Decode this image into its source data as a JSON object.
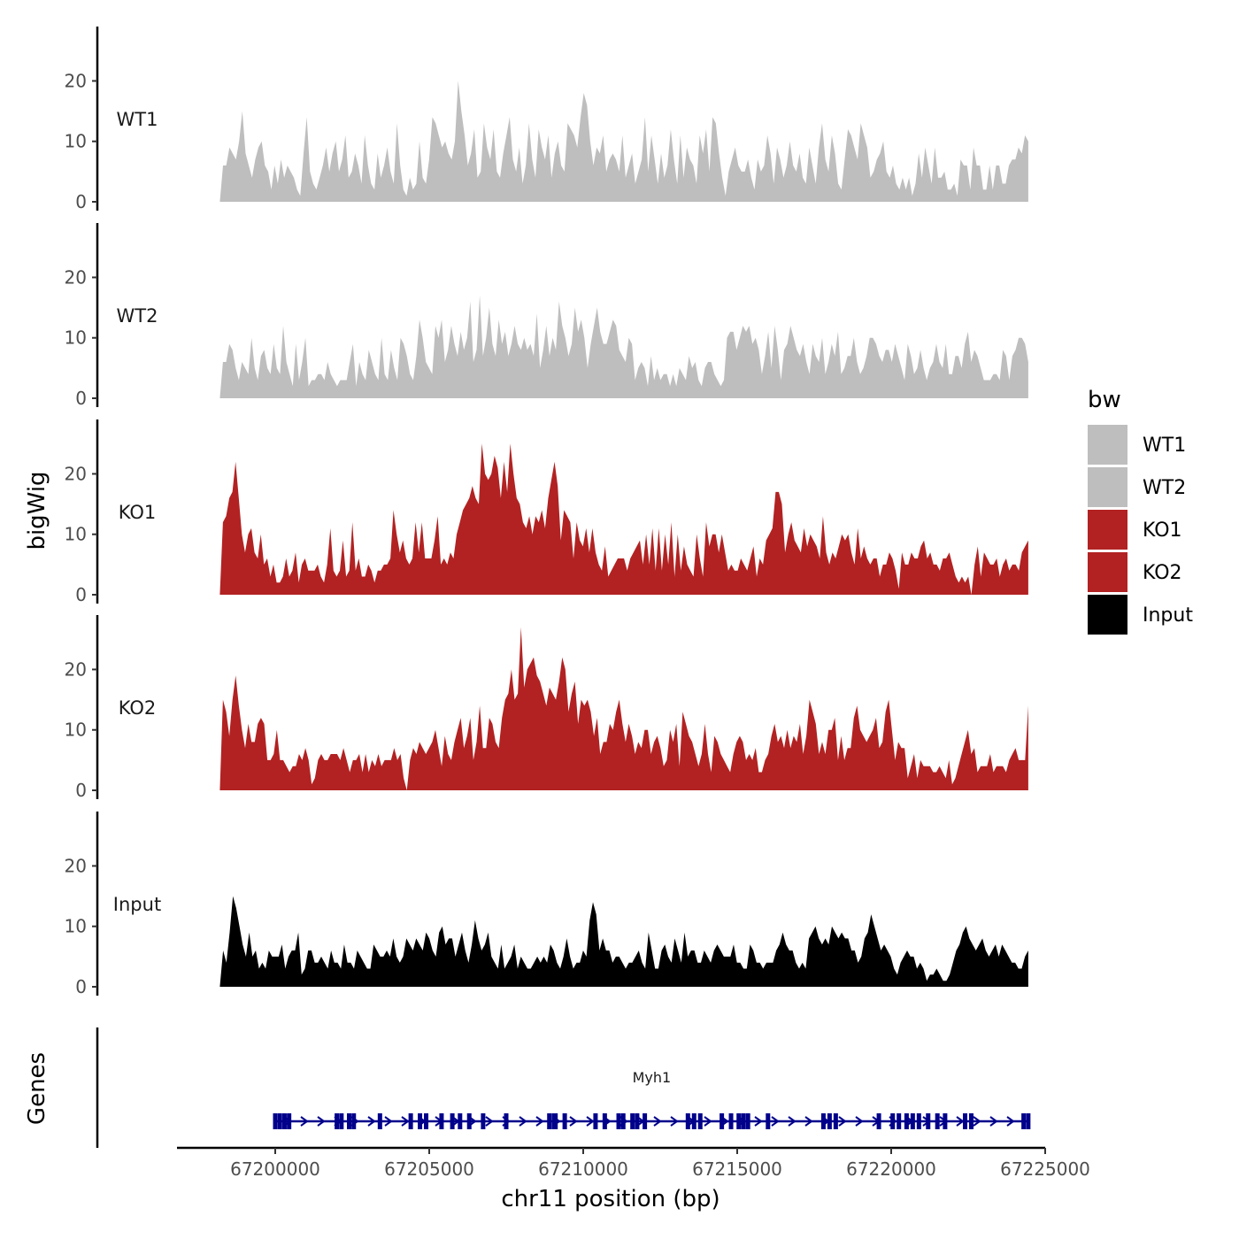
{
  "chart_data": {
    "type": "area",
    "ylabel": "bigWig",
    "xlabel": "chr11 position (bp)",
    "xlim": [
      67198200,
      67224450
    ],
    "ylim": [
      0,
      29
    ],
    "y_ticks": [
      0,
      10,
      20
    ],
    "x_ticks": [
      67200000,
      67205000,
      67210000,
      67215000,
      67220000,
      67225000
    ],
    "x_tick_labels": [
      "67200000",
      "67205000",
      "67210000",
      "67215000",
      "67220000",
      "67225000"
    ],
    "legend": {
      "title": "bw",
      "placement": "right",
      "entries": [
        {
          "label": "WT1",
          "color": "#bebebe"
        },
        {
          "label": "WT2",
          "color": "#bebebe"
        },
        {
          "label": "KO1",
          "color": "#b22222"
        },
        {
          "label": "KO2",
          "color": "#b22222"
        },
        {
          "label": "Input",
          "color": "#000000"
        }
      ]
    },
    "series": [
      {
        "name": "WT1",
        "color": "#bebebe",
        "values": [
          0,
          6,
          6,
          9,
          8,
          7,
          10,
          15,
          8,
          6,
          4,
          7,
          9,
          10,
          6,
          5,
          2,
          6,
          3,
          7,
          4,
          6,
          5,
          4,
          2,
          1,
          8,
          14,
          5,
          3,
          2,
          4,
          6,
          9,
          5,
          8,
          10,
          5,
          7,
          11,
          4,
          5,
          8,
          6,
          3,
          11,
          6,
          3,
          2,
          8,
          4,
          6,
          9,
          5,
          3,
          13,
          6,
          2,
          1,
          4,
          2,
          3,
          10,
          4,
          3,
          7,
          14,
          13,
          11,
          9,
          10,
          8,
          7,
          10,
          20,
          15,
          11,
          6,
          8,
          12,
          4,
          5,
          13,
          9,
          7,
          12,
          5,
          4,
          8,
          11,
          14,
          7,
          5,
          9,
          3,
          6,
          13,
          7,
          4,
          12,
          9,
          7,
          11,
          4,
          8,
          10,
          6,
          5,
          13,
          12,
          11,
          9,
          14,
          18,
          16,
          10,
          6,
          9,
          8,
          11,
          5,
          7,
          8,
          7,
          5,
          11,
          4,
          6,
          8,
          3,
          5,
          7,
          14,
          5,
          11,
          7,
          3,
          8,
          4,
          6,
          12,
          7,
          3,
          11,
          4,
          9,
          7,
          6,
          3,
          11,
          8,
          12,
          5,
          14,
          13,
          8,
          4,
          1,
          5,
          7,
          9,
          6,
          5,
          5,
          7,
          4,
          2,
          7,
          5,
          6,
          11,
          8,
          3,
          9,
          7,
          4,
          6,
          10,
          6,
          5,
          8,
          4,
          3,
          9,
          6,
          3,
          9,
          13,
          7,
          5,
          11,
          8,
          3,
          2,
          7,
          12,
          11,
          9,
          7,
          13,
          11,
          9,
          4,
          5,
          7,
          8,
          10,
          5,
          4,
          6,
          3,
          2,
          4,
          2,
          4,
          1,
          3,
          8,
          4,
          9,
          6,
          3,
          9,
          4,
          4,
          5,
          2,
          2,
          3,
          1,
          7,
          6,
          6,
          2,
          9,
          6,
          6,
          2,
          2,
          6,
          2,
          6,
          6,
          3,
          3,
          6,
          7,
          7,
          9,
          8,
          11,
          10
        ]
      },
      {
        "name": "WT2",
        "color": "#bebebe",
        "values": [
          0,
          6,
          6,
          9,
          8,
          5,
          3,
          6,
          5,
          4,
          10,
          5,
          3,
          7,
          8,
          5,
          4,
          9,
          5,
          4,
          12,
          6,
          4,
          2,
          9,
          3,
          6,
          10,
          2,
          3,
          3,
          4,
          4,
          3,
          6,
          4,
          3,
          2,
          3,
          3,
          3,
          6,
          9,
          2,
          6,
          4,
          3,
          8,
          6,
          4,
          3,
          10,
          4,
          3,
          8,
          5,
          3,
          10,
          9,
          7,
          4,
          3,
          7,
          13,
          10,
          6,
          5,
          4,
          12,
          10,
          13,
          6,
          8,
          12,
          9,
          7,
          11,
          8,
          10,
          16,
          6,
          8,
          17,
          7,
          10,
          15,
          9,
          7,
          13,
          9,
          11,
          7,
          9,
          12,
          9,
          8,
          10,
          8,
          9,
          7,
          14,
          5,
          8,
          12,
          7,
          10,
          8,
          16,
          12,
          10,
          7,
          9,
          15,
          11,
          13,
          10,
          5,
          9,
          12,
          15,
          11,
          9,
          9,
          11,
          13,
          12,
          8,
          7,
          6,
          10,
          9,
          3,
          5,
          6,
          5,
          2,
          7,
          3,
          5,
          3,
          4,
          4,
          2,
          4,
          2,
          5,
          4,
          3,
          7,
          5,
          6,
          3,
          2,
          5,
          6,
          6,
          4,
          3,
          2,
          3,
          10,
          11,
          11,
          8,
          10,
          12,
          11,
          12,
          9,
          10,
          8,
          4,
          7,
          11,
          5,
          12,
          8,
          3,
          8,
          9,
          12,
          10,
          8,
          7,
          9,
          6,
          4,
          9,
          7,
          6,
          10,
          4,
          6,
          9,
          7,
          11,
          4,
          5,
          7,
          7,
          10,
          6,
          4,
          5,
          7,
          10,
          10,
          9,
          7,
          6,
          8,
          8,
          6,
          9,
          7,
          5,
          3,
          9,
          7,
          4,
          5,
          8,
          5,
          3,
          5,
          6,
          9,
          6,
          5,
          9,
          4,
          4,
          7,
          7,
          5,
          9,
          11,
          6,
          8,
          7,
          5,
          3,
          3,
          3,
          4,
          4,
          3,
          8,
          7,
          3,
          7,
          8,
          10,
          10,
          9,
          6
        ]
      },
      {
        "name": "KO1",
        "color": "#b22222",
        "values": [
          0,
          12,
          13,
          16,
          17,
          22,
          16,
          10,
          7,
          10,
          11,
          7,
          6,
          10,
          5,
          6,
          3,
          5,
          2,
          2,
          3,
          6,
          3,
          4,
          7,
          2,
          5,
          6,
          4,
          4,
          4,
          5,
          3,
          2,
          5,
          11,
          4,
          3,
          4,
          9,
          3,
          4,
          12,
          4,
          6,
          3,
          3,
          5,
          4,
          2,
          4,
          4,
          5,
          5,
          6,
          14,
          10,
          7,
          9,
          6,
          5,
          6,
          12,
          7,
          12,
          6,
          6,
          6,
          9,
          13,
          5,
          6,
          5,
          7,
          6,
          10,
          12,
          14,
          15,
          16,
          18,
          16,
          15,
          25,
          20,
          19,
          20,
          23,
          21,
          16,
          22,
          17,
          25,
          20,
          16,
          15,
          12,
          11,
          13,
          10,
          13,
          12,
          14,
          11,
          16,
          19,
          22,
          18,
          9,
          14,
          13,
          12,
          6,
          12,
          9,
          8,
          11,
          7,
          11,
          7,
          5,
          4,
          8,
          3,
          4,
          5,
          6,
          6,
          6,
          4,
          6,
          7,
          8,
          9,
          5,
          10,
          5,
          11,
          4,
          11,
          4,
          10,
          5,
          12,
          3,
          10,
          4,
          8,
          5,
          4,
          3,
          10,
          6,
          3,
          12,
          8,
          10,
          10,
          7,
          10,
          7,
          4,
          5,
          4,
          4,
          6,
          5,
          4,
          6,
          8,
          3,
          6,
          5,
          9,
          10,
          11,
          17,
          17,
          15,
          7,
          10,
          12,
          9,
          8,
          7,
          11,
          8,
          10,
          9,
          8,
          6,
          13,
          7,
          5,
          7,
          6,
          8,
          10,
          9,
          10,
          7,
          5,
          11,
          6,
          8,
          6,
          5,
          6,
          6,
          3,
          5,
          5,
          7,
          6,
          4,
          1,
          7,
          5,
          5,
          7,
          6,
          6,
          8,
          9,
          6,
          7,
          5,
          5,
          4,
          6,
          6,
          7,
          5,
          3,
          2,
          3,
          2,
          3,
          0,
          5,
          8,
          3,
          7,
          6,
          5,
          5,
          6,
          3,
          5,
          6,
          4,
          5,
          5,
          4,
          7,
          8,
          9
        ]
      },
      {
        "name": "KO2",
        "color": "#b22222",
        "values": [
          0,
          15,
          13,
          9,
          15,
          19,
          14,
          10,
          7,
          11,
          8,
          8,
          11,
          12,
          11,
          5,
          5,
          6,
          10,
          5,
          5,
          4,
          3,
          4,
          4,
          6,
          5,
          7,
          5,
          1,
          2,
          5,
          6,
          5,
          5,
          6,
          6,
          6,
          5,
          7,
          5,
          3,
          5,
          5,
          6,
          3,
          6,
          3,
          5,
          4,
          6,
          4,
          5,
          5,
          5,
          7,
          5,
          6,
          2,
          0,
          5,
          7,
          6,
          8,
          7,
          6,
          7,
          8,
          10,
          7,
          4,
          9,
          6,
          5,
          8,
          10,
          12,
          7,
          9,
          12,
          5,
          8,
          14,
          7,
          7,
          12,
          11,
          8,
          7,
          12,
          15,
          16,
          20,
          15,
          16,
          27,
          17,
          20,
          21,
          22,
          19,
          18,
          16,
          14,
          17,
          16,
          15,
          18,
          22,
          20,
          13,
          16,
          18,
          11,
          15,
          14,
          15,
          13,
          9,
          12,
          6,
          8,
          8,
          11,
          10,
          13,
          15,
          11,
          8,
          11,
          9,
          6,
          8,
          7,
          10,
          10,
          6,
          8,
          9,
          7,
          4,
          5,
          10,
          8,
          11,
          4,
          13,
          11,
          9,
          8,
          6,
          4,
          6,
          11,
          6,
          3,
          9,
          8,
          6,
          5,
          4,
          3,
          6,
          8,
          9,
          8,
          5,
          6,
          5,
          7,
          3,
          3,
          5,
          6,
          9,
          11,
          8,
          9,
          7,
          10,
          7,
          9,
          8,
          11,
          6,
          9,
          15,
          13,
          11,
          6,
          8,
          6,
          10,
          10,
          12,
          5,
          9,
          5,
          7,
          7,
          12,
          14,
          10,
          9,
          8,
          9,
          10,
          12,
          7,
          8,
          13,
          15,
          10,
          5,
          8,
          7,
          7,
          2,
          4,
          6,
          2,
          5,
          4,
          4,
          4,
          3,
          3,
          4,
          3,
          2,
          5,
          1,
          2,
          4,
          6,
          8,
          10,
          6,
          7,
          3,
          4,
          4,
          4,
          6,
          3,
          4,
          4,
          4,
          3,
          5,
          6,
          7,
          5,
          5,
          5,
          14
        ]
      },
      {
        "name": "Input",
        "color": "#000000",
        "values": [
          0,
          6,
          4,
          9,
          15,
          13,
          10,
          7,
          5,
          9,
          5,
          6,
          3,
          4,
          3,
          6,
          5,
          5,
          5,
          7,
          3,
          5,
          6,
          6,
          9,
          2,
          3,
          6,
          6,
          4,
          4,
          5,
          4,
          3,
          6,
          4,
          4,
          3,
          7,
          4,
          4,
          3,
          6,
          5,
          4,
          3,
          3,
          7,
          6,
          5,
          5,
          6,
          5,
          8,
          5,
          4,
          5,
          8,
          7,
          6,
          8,
          7,
          6,
          9,
          8,
          6,
          5,
          9,
          10,
          7,
          8,
          8,
          5,
          7,
          9,
          6,
          4,
          7,
          11,
          8,
          6,
          7,
          9,
          5,
          4,
          3,
          7,
          3,
          4,
          5,
          7,
          3,
          5,
          4,
          3,
          3,
          4,
          5,
          4,
          5,
          4,
          7,
          6,
          4,
          3,
          5,
          8,
          5,
          3,
          4,
          4,
          6,
          5,
          11,
          14,
          12,
          6,
          8,
          6,
          6,
          4,
          5,
          5,
          4,
          3,
          4,
          4,
          5,
          6,
          4,
          3,
          9,
          6,
          3,
          3,
          6,
          7,
          5,
          4,
          8,
          6,
          4,
          9,
          5,
          6,
          6,
          4,
          4,
          6,
          5,
          4,
          6,
          7,
          6,
          5,
          5,
          5,
          7,
          4,
          4,
          3,
          3,
          7,
          6,
          4,
          4,
          3,
          4,
          4,
          4,
          6,
          7,
          9,
          7,
          6,
          6,
          4,
          3,
          4,
          3,
          8,
          9,
          10,
          8,
          7,
          8,
          7,
          10,
          9,
          8,
          9,
          8,
          8,
          6,
          6,
          4,
          5,
          8,
          9,
          12,
          10,
          8,
          6,
          7,
          6,
          5,
          3,
          2,
          4,
          5,
          6,
          5,
          5,
          3,
          4,
          3,
          1,
          2,
          2,
          3,
          2,
          1,
          1,
          2,
          4,
          6,
          7,
          9,
          10,
          8,
          7,
          6,
          7,
          8,
          6,
          5,
          6,
          7,
          5,
          7,
          6,
          5,
          4,
          4,
          3,
          3,
          5,
          6
        ]
      }
    ],
    "genes": {
      "title": "Genes",
      "name": "Myh1",
      "strand": "+",
      "start": 67200000,
      "end": 67224450,
      "color": "#00008b",
      "exons": [
        67200000,
        67200150,
        67200300,
        67200450,
        67202000,
        67202150,
        67202400,
        67202550,
        67203400,
        67204400,
        67204700,
        67204900,
        67205400,
        67205750,
        67206000,
        67206300,
        67206750,
        67207500,
        67208900,
        67209050,
        67209100,
        67209400,
        67210400,
        67210700,
        67211150,
        67211300,
        67211600,
        67211750,
        67212000,
        67213400,
        67213600,
        67213800,
        67214500,
        67214800,
        67215050,
        67215200,
        67215350,
        67216000,
        67217800,
        67218000,
        67218200,
        67219600,
        67220050,
        67220250,
        67220500,
        67220700,
        67220900,
        67221200,
        67221500,
        67221750,
        67222400,
        67222600,
        67224300,
        67224450
      ]
    }
  }
}
